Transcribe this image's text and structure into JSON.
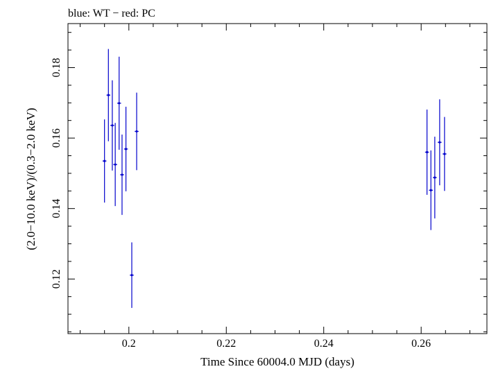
{
  "chart_data": {
    "type": "scatter",
    "title": "blue: WT − red: PC",
    "xlabel": "Time Since 60004.0 MJD (days)",
    "ylabel": "(2.0−10.0 keV)/(0.3−2.0 keV)",
    "xlim": [
      0.1875,
      0.2735
    ],
    "ylim": [
      0.1045,
      0.1925
    ],
    "x_ticks": [
      {
        "value": 0.2,
        "label": "0.2"
      },
      {
        "value": 0.22,
        "label": "0.22"
      },
      {
        "value": 0.24,
        "label": "0.24"
      },
      {
        "value": 0.26,
        "label": "0.26"
      }
    ],
    "y_ticks": [
      {
        "value": 0.12,
        "label": "0.12"
      },
      {
        "value": 0.14,
        "label": "0.14"
      },
      {
        "value": 0.16,
        "label": "0.16"
      },
      {
        "value": 0.18,
        "label": "0.18"
      }
    ],
    "x_minor_step": 0.005,
    "y_minor_step": 0.005,
    "series": [
      {
        "name": "WT",
        "color": "#0000cc",
        "points": [
          {
            "x": 0.195,
            "y": 0.1535,
            "xerr": 0.0004,
            "yerr": 0.0118
          },
          {
            "x": 0.1958,
            "y": 0.1722,
            "xerr": 0.0004,
            "yerr": 0.0131
          },
          {
            "x": 0.1966,
            "y": 0.1636,
            "xerr": 0.0004,
            "yerr": 0.0128
          },
          {
            "x": 0.1972,
            "y": 0.1525,
            "xerr": 0.0004,
            "yerr": 0.0118
          },
          {
            "x": 0.198,
            "y": 0.1699,
            "xerr": 0.0004,
            "yerr": 0.0132
          },
          {
            "x": 0.1986,
            "y": 0.1496,
            "xerr": 0.0004,
            "yerr": 0.0114
          },
          {
            "x": 0.1994,
            "y": 0.1569,
            "xerr": 0.0004,
            "yerr": 0.012
          },
          {
            "x": 0.2006,
            "y": 0.1211,
            "xerr": 0.0004,
            "yerr": 0.0093
          },
          {
            "x": 0.2016,
            "y": 0.1619,
            "xerr": 0.0004,
            "yerr": 0.011
          },
          {
            "x": 0.2612,
            "y": 0.156,
            "xerr": 0.0004,
            "yerr": 0.0121
          },
          {
            "x": 0.262,
            "y": 0.1452,
            "xerr": 0.0004,
            "yerr": 0.0113
          },
          {
            "x": 0.2628,
            "y": 0.1488,
            "xerr": 0.0004,
            "yerr": 0.0116
          },
          {
            "x": 0.2638,
            "y": 0.1588,
            "xerr": 0.0004,
            "yerr": 0.0122
          },
          {
            "x": 0.2648,
            "y": 0.1555,
            "xerr": 0.0004,
            "yerr": 0.0105
          }
        ]
      }
    ]
  }
}
